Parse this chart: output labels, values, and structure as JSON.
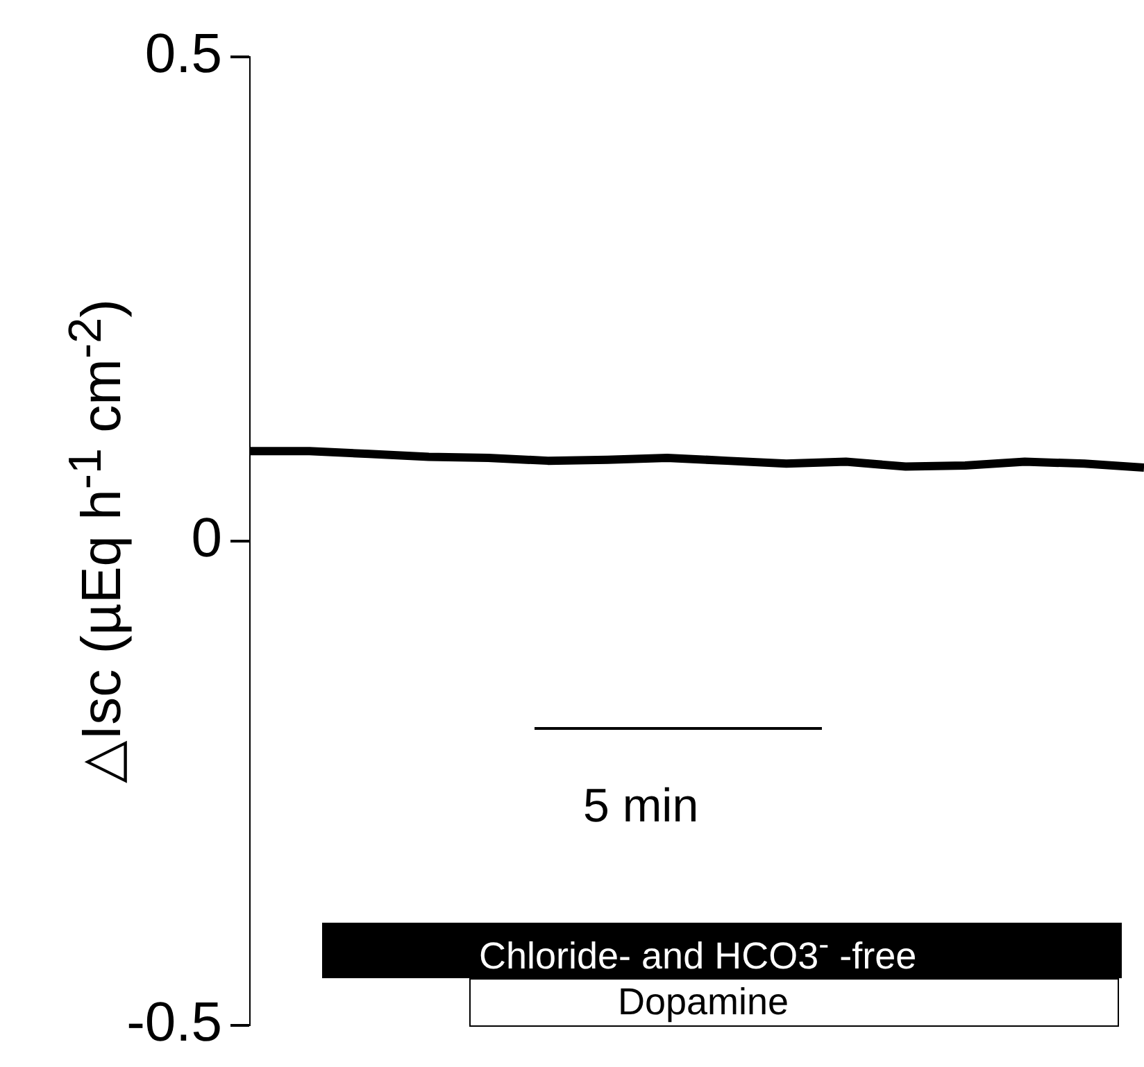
{
  "chart_data": {
    "type": "line",
    "ylabel": "△Isc (µEq h$^{-1}$ cm$^{-2}$)",
    "categories": [
      null,
      null,
      null,
      null,
      null,
      null,
      null,
      null,
      null,
      null,
      null,
      null,
      null,
      null,
      null,
      null
    ],
    "series": [
      {
        "color": "#000000",
        "values": [
          0.093,
          0.093,
          0.09,
          0.087,
          0.086,
          0.083,
          0.084,
          0.086,
          0.083,
          0.08,
          0.082,
          0.077,
          0.078,
          0.082,
          0.08,
          0.076
        ]
      }
    ],
    "ylim": [
      -0.5,
      0.5
    ],
    "yticks": [
      -0.5,
      0,
      0.5
    ],
    "tick_labels": "y",
    "grid": false,
    "legend": false,
    "marker": "none",
    "line_style": "solid",
    "annotations": [
      "5 min",
      "Chloride- and HCO3$^{-}$ -free",
      "Dopamine"
    ]
  }
}
